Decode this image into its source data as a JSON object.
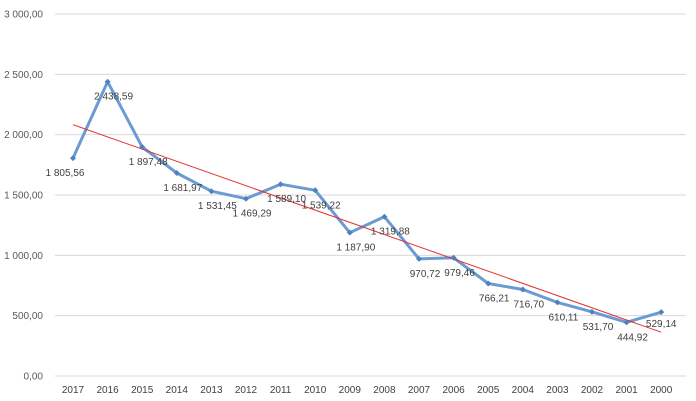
{
  "chart_data": {
    "type": "line",
    "categories": [
      "2017",
      "2016",
      "2015",
      "2014",
      "2013",
      "2012",
      "2011",
      "2010",
      "2009",
      "2008",
      "2007",
      "2006",
      "2005",
      "2004",
      "2003",
      "2002",
      "2001",
      "2000"
    ],
    "series": [
      {
        "values": [
          1805.56,
          2438.59,
          1897.48,
          1681.97,
          1531.45,
          1469.29,
          1589.1,
          1539.22,
          1187.9,
          1319.88,
          970.72,
          979.46,
          766.21,
          716.7,
          610.11,
          531.7,
          444.92,
          529.14
        ],
        "labels": [
          "1 805,56",
          "2 438,59",
          "1 897,48",
          "1 681,97",
          "1 531,45",
          "1 469,29",
          "1 589,10",
          "1 539,22",
          "1 187,90",
          "1 319,88",
          "970,72",
          "979,46",
          "766,21",
          "716,70",
          "610,11",
          "531,70",
          "444,92",
          "529,14"
        ],
        "color": "#6a9bd2"
      }
    ],
    "trendline": {
      "type": "linear",
      "color": "#e0312f"
    },
    "yticks": [
      0,
      500,
      1000,
      1500,
      2000,
      2500,
      3000
    ],
    "ytick_labels": [
      "0,00",
      "500,00",
      "1 000,00",
      "1 500,00",
      "2 000,00",
      "2 500,00",
      "3 000,00"
    ],
    "ylim": [
      0,
      3000
    ],
    "grid": true,
    "legend": "none"
  }
}
